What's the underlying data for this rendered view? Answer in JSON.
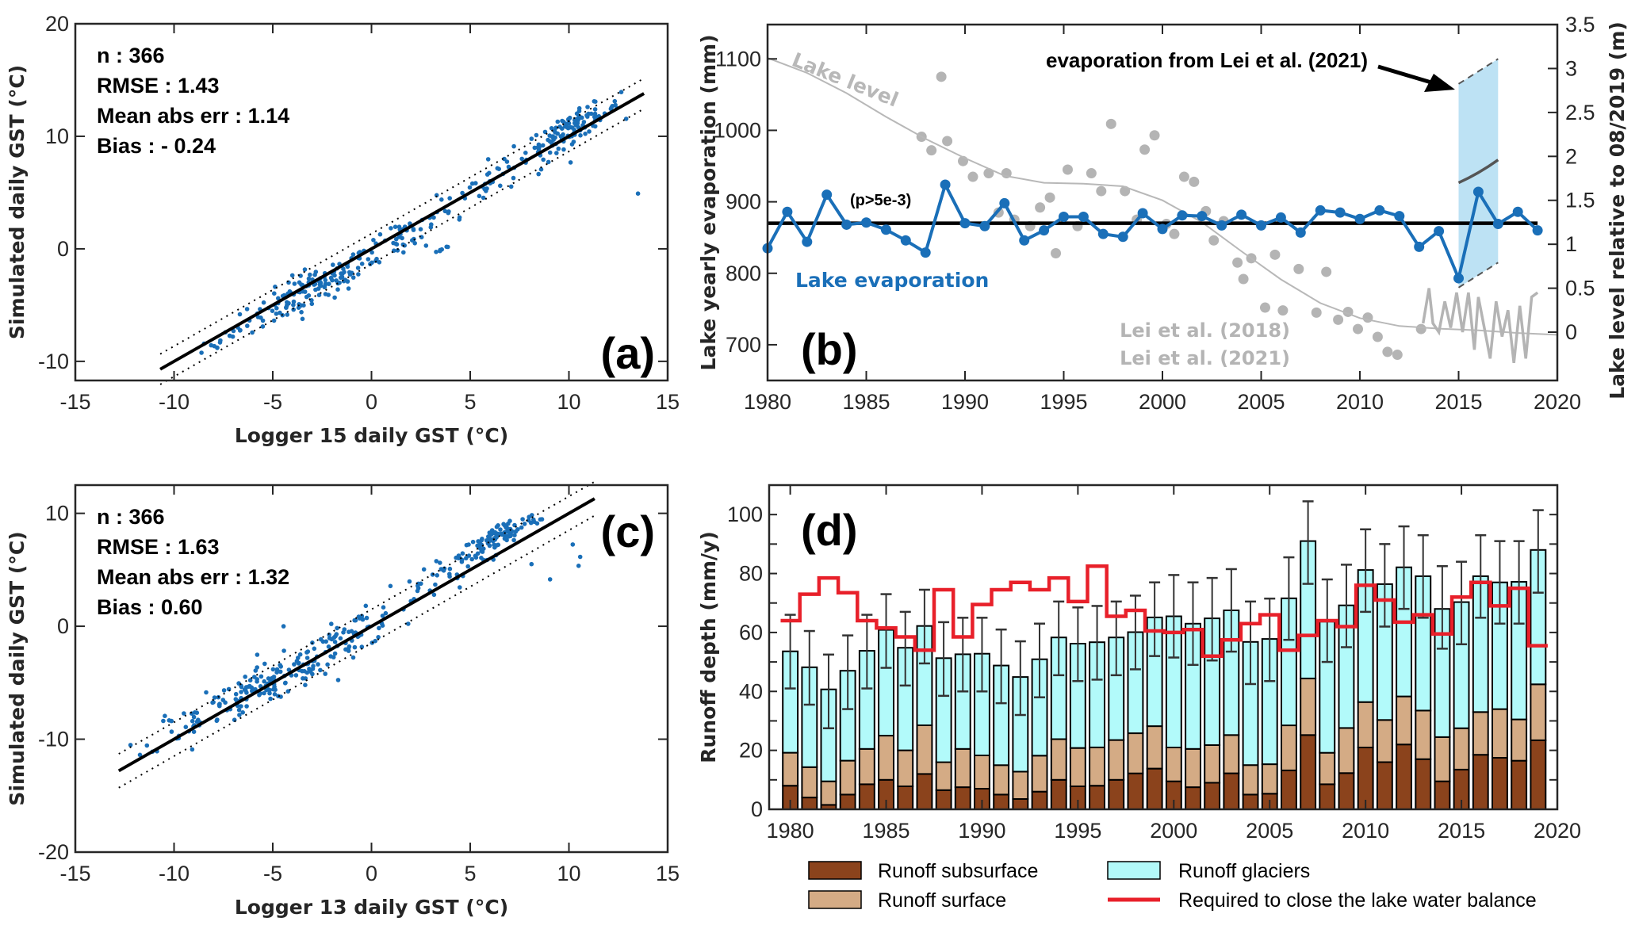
{
  "chart_data": [
    {
      "id": "a",
      "type": "scatter",
      "panel_label": "(a)",
      "xlabel": "Logger 15 daily GST (°C)",
      "ylabel": "Simulated daily GST (°C)",
      "xlim": [
        -15,
        15
      ],
      "ylim": [
        -11.7,
        20
      ],
      "xticks": [
        -15,
        -10,
        -5,
        0,
        5,
        10,
        15
      ],
      "yticks": [
        -10,
        0,
        10,
        20
      ],
      "stats": [
        "n : 366",
        "RMSE : 1.43",
        "Mean abs err : 1.14",
        "Bias : - 0.24"
      ],
      "fit_line": {
        "x": [
          -10.7,
          13.8
        ],
        "y": [
          -10.7,
          13.8
        ]
      },
      "band_offset": 0.9,
      "point_color": "#1a6fb8",
      "n_points": 366,
      "clusters": [
        {
          "cx": -3.0,
          "cy": -3.6,
          "sx": 1.6,
          "sy": 1.4,
          "n": 130
        },
        {
          "cx": 1.5,
          "cy": 1.2,
          "sx": 1.4,
          "sy": 1.6,
          "n": 50
        },
        {
          "cx": 6.0,
          "cy": 6.0,
          "sx": 1.5,
          "sy": 1.5,
          "n": 45
        },
        {
          "cx": 10.2,
          "cy": 10.8,
          "sx": 1.2,
          "sy": 1.0,
          "n": 110
        },
        {
          "cx": -7.5,
          "cy": -8.0,
          "sx": 0.7,
          "sy": 0.8,
          "n": 16
        },
        {
          "cx": 3.5,
          "cy": -0.1,
          "sx": 0.4,
          "sy": 0.1,
          "n": 6
        },
        {
          "cx": 13.6,
          "cy": 5.0,
          "sx": 0.05,
          "sy": 0.05,
          "n": 1
        }
      ]
    },
    {
      "id": "b",
      "type": "line",
      "panel_label": "(b)",
      "xlabel": "",
      "ylabel": "Lake yearly evaporation (mm)",
      "ylabel_right": "Lake level relative to 08/2019 (m)",
      "xlim": [
        1980,
        2020
      ],
      "ylim": [
        650,
        1148
      ],
      "ylim_right": [
        -0.55,
        3.5
      ],
      "xticks": [
        1980,
        1985,
        1990,
        1995,
        2000,
        2005,
        2010,
        2015,
        2020
      ],
      "yticks": [
        700,
        800,
        900,
        1000,
        1100
      ],
      "yticks_right": [
        0,
        0.5,
        1,
        1.5,
        2,
        2.5,
        3,
        3.5
      ],
      "yticklabels_right": [
        "0",
        "0.5",
        "1",
        "1.5",
        "2",
        "2.5",
        "3",
        "3.5"
      ],
      "evaporation": {
        "name": "Lake evaporation",
        "color": "#1a6fb8",
        "x": [
          1980,
          1981,
          1982,
          1983,
          1984,
          1985,
          1986,
          1987,
          1988,
          1989,
          1990,
          1991,
          1992,
          1993,
          1994,
          1995,
          1996,
          1997,
          1998,
          1999,
          2000,
          2001,
          2002,
          2003,
          2004,
          2005,
          2006,
          2007,
          2008,
          2009,
          2010,
          2011,
          2012,
          2013,
          2014,
          2015,
          2016,
          2017,
          2018,
          2019
        ],
        "y": [
          835,
          886,
          844,
          910,
          868,
          871,
          861,
          846,
          829,
          924,
          870,
          866,
          898,
          846,
          860,
          879,
          879,
          855,
          851,
          884,
          862,
          881,
          880,
          867,
          882,
          867,
          878,
          857,
          888,
          885,
          876,
          888,
          880,
          837,
          859,
          793,
          914,
          869,
          886,
          860
        ]
      },
      "mean_line": {
        "value": 870,
        "annotation": "(p>5e-3)"
      },
      "lake_level_curve": {
        "name": "Lake level",
        "color": "#b8b8b8",
        "x": [
          1980,
          1982,
          1984,
          1986,
          1988,
          1990,
          1992,
          1994,
          1996,
          1998,
          2000,
          2002,
          2004,
          2006,
          2008,
          2010,
          2012,
          2014,
          2016,
          2018,
          2020
        ],
        "y": [
          3.12,
          2.95,
          2.72,
          2.45,
          2.2,
          1.98,
          1.78,
          1.7,
          1.69,
          1.66,
          1.5,
          1.25,
          0.92,
          0.6,
          0.33,
          0.16,
          0.07,
          0.04,
          0.02,
          -0.01,
          -0.03
        ]
      },
      "lei2018_points": {
        "name": "Lei et al. (2018)",
        "color": "#b4b4b4",
        "x": [
          1987.8,
          1988.3,
          1988.8,
          1989.1,
          1989.9,
          1990.4,
          1991.2,
          1991.7,
          1992.1,
          1992.5,
          1993.3,
          1993.8,
          1994.3,
          1994.6,
          1995.2,
          1995.7,
          1996.4,
          1996.9,
          1997.4,
          1998.1,
          1998.7,
          1999.1,
          1999.6,
          2000.2,
          2000.6,
          2001.1,
          2001.6,
          2002.2,
          2002.6,
          2003.1,
          2003.8,
          2004.1,
          2004.5,
          2005.2,
          2005.7,
          2006.1,
          2006.9,
          2007.8,
          2008.3,
          2008.9,
          2009.4,
          2009.9,
          2010.4,
          2010.9,
          2011.4,
          2011.9,
          2013.1
        ],
        "y": [
          991,
          972,
          1075,
          985,
          957,
          935,
          940,
          885,
          940,
          875,
          866,
          892,
          906,
          828,
          945,
          866,
          940,
          915,
          1009,
          915,
          875,
          973,
          993,
          869,
          855,
          935,
          928,
          887,
          846,
          873,
          815,
          792,
          821,
          752,
          826,
          748,
          806,
          745,
          802,
          735,
          746,
          722,
          738,
          711,
          690,
          686,
          722
        ]
      },
      "lei2021_level": {
        "name": "Lei et al. (2021)",
        "color": "#b4b4b4",
        "x": [
          2013.2,
          2013.5,
          2013.7,
          2014.0,
          2014.3,
          2014.6,
          2014.9,
          2015.2,
          2015.5,
          2015.8,
          2016.0,
          2016.3,
          2016.6,
          2016.9,
          2017.2,
          2017.5,
          2017.8,
          2018.1,
          2018.4,
          2018.7,
          2019.0
        ],
        "y": [
          0.1,
          0.5,
          0.1,
          0.0,
          0.35,
          0.05,
          0.45,
          0.0,
          0.45,
          -0.2,
          0.4,
          0.05,
          -0.3,
          0.35,
          -0.05,
          0.25,
          -0.35,
          0.3,
          -0.3,
          0.4,
          0.45
        ]
      },
      "lei2021_band": {
        "color": "#bde2f4",
        "x": [
          2015,
          2017
        ],
        "upper": [
          1065,
          1100
        ],
        "lower": [
          780,
          815
        ],
        "central_level_m": [
          1.7,
          1.96
        ]
      },
      "annotations": {
        "arrow_text": "evaporation from Lei et al. (2021)",
        "lake_level_label": "Lake level",
        "evap_label": "Lake evaporation",
        "lei2018_label": "Lei et al. (2018)",
        "lei2021_label": "Lei et al. (2021)"
      }
    },
    {
      "id": "c",
      "type": "scatter",
      "panel_label": "(c)",
      "xlabel": "Logger 13 daily GST (°C)",
      "ylabel": "Simulated daily GST (°C)",
      "xlim": [
        -15,
        15
      ],
      "ylim": [
        -20,
        12.5
      ],
      "xticks": [
        -15,
        -10,
        -5,
        0,
        5,
        10,
        15
      ],
      "yticks": [
        -20,
        -10,
        0,
        10
      ],
      "stats": [
        "n : 366",
        "RMSE : 1.63",
        "Mean abs err : 1.32",
        "Bias : 0.60"
      ],
      "fit_line": {
        "x": [
          -12.8,
          11.3
        ],
        "y": [
          -12.8,
          11.3
        ]
      },
      "band_offset": 1.0,
      "point_color": "#1a6fb8",
      "n_points": 366,
      "clusters": [
        {
          "cx": -5.0,
          "cy": -5.0,
          "sx": 1.8,
          "sy": 1.6,
          "n": 120
        },
        {
          "cx": -1.0,
          "cy": -0.8,
          "sx": 1.2,
          "sy": 1.4,
          "n": 60
        },
        {
          "cx": 3.5,
          "cy": 4.5,
          "sx": 1.6,
          "sy": 1.4,
          "n": 45
        },
        {
          "cx": 6.5,
          "cy": 8.0,
          "sx": 1.0,
          "sy": 0.9,
          "n": 100
        },
        {
          "cx": -9.0,
          "cy": -8.0,
          "sx": 1.1,
          "sy": 1.5,
          "n": 35
        },
        {
          "cx": 10.2,
          "cy": 6.5,
          "sx": 0.8,
          "sy": 1.2,
          "n": 5
        },
        {
          "cx": -4.5,
          "cy": 0.0,
          "sx": 0.05,
          "sy": 0.05,
          "n": 1
        }
      ]
    },
    {
      "id": "d",
      "type": "bar",
      "panel_label": "(d)",
      "xlabel": "",
      "ylabel": "Runoff depth (mm/y)",
      "xlim": [
        1978.9,
        2020
      ],
      "ylim": [
        0,
        110
      ],
      "xticks": [
        1980,
        1985,
        1990,
        1995,
        2000,
        2005,
        2010,
        2015,
        2020
      ],
      "yticks": [
        0,
        20,
        40,
        60,
        80,
        100
      ],
      "categories": [
        1980,
        1981,
        1982,
        1983,
        1984,
        1985,
        1986,
        1987,
        1988,
        1989,
        1990,
        1991,
        1992,
        1993,
        1994,
        1995,
        1996,
        1997,
        1998,
        1999,
        2000,
        2001,
        2002,
        2003,
        2004,
        2005,
        2006,
        2007,
        2008,
        2009,
        2010,
        2011,
        2012,
        2013,
        2014,
        2015,
        2016,
        2017,
        2018,
        2019
      ],
      "series": [
        {
          "name": "Runoff subsurface",
          "color": "#8b431c",
          "values": [
            8,
            4,
            1.5,
            5,
            8.5,
            10,
            7.8,
            12,
            6.5,
            7.5,
            7,
            5,
            3.5,
            6,
            10,
            7.8,
            8,
            10,
            12.2,
            13.8,
            9.5,
            7.5,
            9,
            12.2,
            5,
            5.3,
            13.2,
            25.2,
            8.5,
            12.3,
            21,
            16,
            22,
            17,
            9.5,
            13.5,
            18.5,
            17.5,
            16.5,
            23.4
          ]
        },
        {
          "name": "Runoff surface",
          "color": "#d4ab85",
          "values": [
            11.2,
            10.3,
            8,
            11.5,
            12,
            15,
            12.2,
            16.5,
            9.5,
            13,
            11.3,
            10,
            9.3,
            12.2,
            13.8,
            13,
            13,
            13.5,
            13.6,
            14.4,
            11.5,
            13,
            12.8,
            13,
            10,
            10,
            15.3,
            19.2,
            10.7,
            15.3,
            15.4,
            14.3,
            16.3,
            16.5,
            15,
            14,
            14.5,
            16.5,
            14,
            19
          ]
        },
        {
          "name": "Runoff glaciers",
          "color": "#b2fafa",
          "values": [
            34.4,
            33.9,
            31.2,
            30.5,
            33.3,
            35.9,
            34.8,
            33.7,
            35.3,
            32.1,
            34.5,
            33.8,
            32.1,
            32.7,
            34.5,
            35.4,
            35.7,
            34.8,
            34.3,
            36.9,
            44.5,
            42.5,
            43,
            42.3,
            41.8,
            42.5,
            43.1,
            46.6,
            44.5,
            41.6,
            44.8,
            46.1,
            43.8,
            45.6,
            43.5,
            42.8,
            46.1,
            43,
            46.7,
            45.6
          ]
        }
      ],
      "total_errorbars": {
        "lower": [
          41,
          35.5,
          27.5,
          34,
          41,
          48,
          42,
          49.5,
          38.5,
          40,
          40,
          36,
          32,
          38,
          45.5,
          43.5,
          44,
          45.5,
          47.5,
          52,
          51.5,
          49,
          50.5,
          53.5,
          42.5,
          43.5,
          57.5,
          76.5,
          50,
          55,
          67,
          62,
          68,
          65,
          54.5,
          56,
          65,
          63,
          63,
          73.5
        ],
        "upper": [
          66,
          60.5,
          52.5,
          59,
          66,
          73,
          67,
          74.5,
          63.5,
          65,
          65,
          61,
          57,
          63,
          70.5,
          68.5,
          69,
          70.5,
          72.5,
          77,
          79.5,
          77,
          78.5,
          81.5,
          70.5,
          71.5,
          85.5,
          104.5,
          78,
          83,
          95,
          90,
          96,
          93,
          82.5,
          84,
          93,
          91,
          91,
          101.5
        ]
      },
      "required_line": {
        "name": "Required to close the lake water balance",
        "color": "#e8202a",
        "values": [
          64,
          73,
          78.5,
          73.5,
          64,
          61.5,
          58.5,
          54,
          74.5,
          58.5,
          69.5,
          74.5,
          77,
          74.5,
          78.5,
          70.5,
          82.5,
          65.5,
          67.5,
          60.5,
          60,
          61,
          52,
          57.5,
          63,
          66,
          54,
          59,
          64,
          62,
          76,
          71,
          63.5,
          66,
          59.5,
          72,
          77,
          69,
          75,
          55.5
        ]
      }
    }
  ],
  "legend_d": [
    {
      "label": "Runoff subsurface",
      "kind": "patch",
      "color": "#8b431c"
    },
    {
      "label": "Runoff glaciers",
      "kind": "patch",
      "color": "#b2fafa"
    },
    {
      "label": "Runoff surface",
      "kind": "patch",
      "color": "#d4ab85"
    },
    {
      "label": "Required to close the lake water balance",
      "kind": "line",
      "color": "#e8202a"
    }
  ]
}
